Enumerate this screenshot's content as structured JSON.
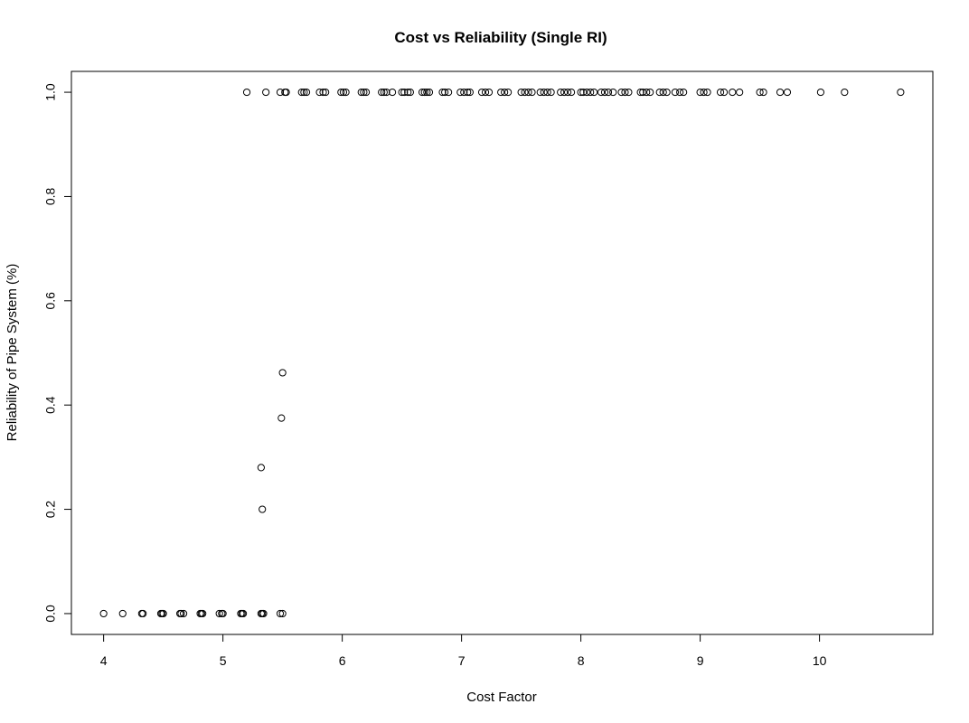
{
  "chart_data": {
    "type": "scatter",
    "title": "Cost vs Reliability (Single RI)",
    "xlabel": "Cost Factor",
    "ylabel": "Reliability of Pipe System (%)",
    "xlim": [
      3.73,
      10.95
    ],
    "ylim": [
      -0.04,
      1.04
    ],
    "xticks": [
      4,
      5,
      6,
      7,
      8,
      9,
      10
    ],
    "yticks": [
      0.0,
      0.2,
      0.4,
      0.6,
      0.8,
      1.0
    ],
    "xtick_labels": [
      "4",
      "5",
      "6",
      "7",
      "8",
      "9",
      "10"
    ],
    "ytick_labels": [
      "0.0",
      "0.2",
      "0.4",
      "0.6",
      "0.8",
      "1.0"
    ],
    "grid": false,
    "legend": "none",
    "points": [
      {
        "x": 4.0,
        "y": 0.0
      },
      {
        "x": 4.16,
        "y": 0.0
      },
      {
        "x": 4.32,
        "y": 0.0
      },
      {
        "x": 4.33,
        "y": 0.0
      },
      {
        "x": 4.48,
        "y": 0.0
      },
      {
        "x": 4.49,
        "y": 0.0
      },
      {
        "x": 4.5,
        "y": 0.0
      },
      {
        "x": 4.64,
        "y": 0.0
      },
      {
        "x": 4.65,
        "y": 0.0
      },
      {
        "x": 4.67,
        "y": 0.0
      },
      {
        "x": 4.81,
        "y": 0.0
      },
      {
        "x": 4.82,
        "y": 0.0
      },
      {
        "x": 4.83,
        "y": 0.0
      },
      {
        "x": 4.97,
        "y": 0.0
      },
      {
        "x": 4.99,
        "y": 0.0
      },
      {
        "x": 5.0,
        "y": 0.0
      },
      {
        "x": 5.15,
        "y": 0.0
      },
      {
        "x": 5.16,
        "y": 0.0
      },
      {
        "x": 5.17,
        "y": 0.0
      },
      {
        "x": 5.32,
        "y": 0.0
      },
      {
        "x": 5.33,
        "y": 0.0
      },
      {
        "x": 5.34,
        "y": 0.0
      },
      {
        "x": 5.48,
        "y": 0.0
      },
      {
        "x": 5.5,
        "y": 0.0
      },
      {
        "x": 5.32,
        "y": 0.28
      },
      {
        "x": 5.33,
        "y": 0.2
      },
      {
        "x": 5.49,
        "y": 0.375
      },
      {
        "x": 5.5,
        "y": 0.462
      },
      {
        "x": 5.2,
        "y": 1.0
      },
      {
        "x": 5.36,
        "y": 1.0
      },
      {
        "x": 5.48,
        "y": 1.0
      },
      {
        "x": 5.52,
        "y": 1.0
      },
      {
        "x": 5.53,
        "y": 1.0
      },
      {
        "x": 5.66,
        "y": 1.0
      },
      {
        "x": 5.68,
        "y": 1.0
      },
      {
        "x": 5.7,
        "y": 1.0
      },
      {
        "x": 5.81,
        "y": 1.0
      },
      {
        "x": 5.84,
        "y": 1.0
      },
      {
        "x": 5.86,
        "y": 1.0
      },
      {
        "x": 5.99,
        "y": 1.0
      },
      {
        "x": 6.01,
        "y": 1.0
      },
      {
        "x": 6.03,
        "y": 1.0
      },
      {
        "x": 6.16,
        "y": 1.0
      },
      {
        "x": 6.18,
        "y": 1.0
      },
      {
        "x": 6.2,
        "y": 1.0
      },
      {
        "x": 6.33,
        "y": 1.0
      },
      {
        "x": 6.35,
        "y": 1.0
      },
      {
        "x": 6.37,
        "y": 1.0
      },
      {
        "x": 6.42,
        "y": 1.0
      },
      {
        "x": 6.5,
        "y": 1.0
      },
      {
        "x": 6.52,
        "y": 1.0
      },
      {
        "x": 6.55,
        "y": 1.0
      },
      {
        "x": 6.57,
        "y": 1.0
      },
      {
        "x": 6.67,
        "y": 1.0
      },
      {
        "x": 6.69,
        "y": 1.0
      },
      {
        "x": 6.71,
        "y": 1.0
      },
      {
        "x": 6.73,
        "y": 1.0
      },
      {
        "x": 6.84,
        "y": 1.0
      },
      {
        "x": 6.86,
        "y": 1.0
      },
      {
        "x": 6.89,
        "y": 1.0
      },
      {
        "x": 6.99,
        "y": 1.0
      },
      {
        "x": 7.02,
        "y": 1.0
      },
      {
        "x": 7.05,
        "y": 1.0
      },
      {
        "x": 7.07,
        "y": 1.0
      },
      {
        "x": 7.17,
        "y": 1.0
      },
      {
        "x": 7.2,
        "y": 1.0
      },
      {
        "x": 7.23,
        "y": 1.0
      },
      {
        "x": 7.33,
        "y": 1.0
      },
      {
        "x": 7.36,
        "y": 1.0
      },
      {
        "x": 7.39,
        "y": 1.0
      },
      {
        "x": 7.5,
        "y": 1.0
      },
      {
        "x": 7.53,
        "y": 1.0
      },
      {
        "x": 7.56,
        "y": 1.0
      },
      {
        "x": 7.59,
        "y": 1.0
      },
      {
        "x": 7.66,
        "y": 1.0
      },
      {
        "x": 7.69,
        "y": 1.0
      },
      {
        "x": 7.72,
        "y": 1.0
      },
      {
        "x": 7.75,
        "y": 1.0
      },
      {
        "x": 7.83,
        "y": 1.0
      },
      {
        "x": 7.86,
        "y": 1.0
      },
      {
        "x": 7.89,
        "y": 1.0
      },
      {
        "x": 7.92,
        "y": 1.0
      },
      {
        "x": 8.0,
        "y": 1.0
      },
      {
        "x": 8.02,
        "y": 1.0
      },
      {
        "x": 8.05,
        "y": 1.0
      },
      {
        "x": 8.08,
        "y": 1.0
      },
      {
        "x": 8.11,
        "y": 1.0
      },
      {
        "x": 8.17,
        "y": 1.0
      },
      {
        "x": 8.2,
        "y": 1.0
      },
      {
        "x": 8.23,
        "y": 1.0
      },
      {
        "x": 8.27,
        "y": 1.0
      },
      {
        "x": 8.34,
        "y": 1.0
      },
      {
        "x": 8.37,
        "y": 1.0
      },
      {
        "x": 8.4,
        "y": 1.0
      },
      {
        "x": 8.5,
        "y": 1.0
      },
      {
        "x": 8.52,
        "y": 1.0
      },
      {
        "x": 8.55,
        "y": 1.0
      },
      {
        "x": 8.58,
        "y": 1.0
      },
      {
        "x": 8.66,
        "y": 1.0
      },
      {
        "x": 8.69,
        "y": 1.0
      },
      {
        "x": 8.72,
        "y": 1.0
      },
      {
        "x": 8.79,
        "y": 1.0
      },
      {
        "x": 8.83,
        "y": 1.0
      },
      {
        "x": 8.86,
        "y": 1.0
      },
      {
        "x": 9.0,
        "y": 1.0
      },
      {
        "x": 9.03,
        "y": 1.0
      },
      {
        "x": 9.06,
        "y": 1.0
      },
      {
        "x": 9.17,
        "y": 1.0
      },
      {
        "x": 9.2,
        "y": 1.0
      },
      {
        "x": 9.27,
        "y": 1.0
      },
      {
        "x": 9.33,
        "y": 1.0
      },
      {
        "x": 9.5,
        "y": 1.0
      },
      {
        "x": 9.53,
        "y": 1.0
      },
      {
        "x": 9.67,
        "y": 1.0
      },
      {
        "x": 9.73,
        "y": 1.0
      },
      {
        "x": 10.01,
        "y": 1.0
      },
      {
        "x": 10.21,
        "y": 1.0
      },
      {
        "x": 10.68,
        "y": 1.0
      }
    ]
  }
}
